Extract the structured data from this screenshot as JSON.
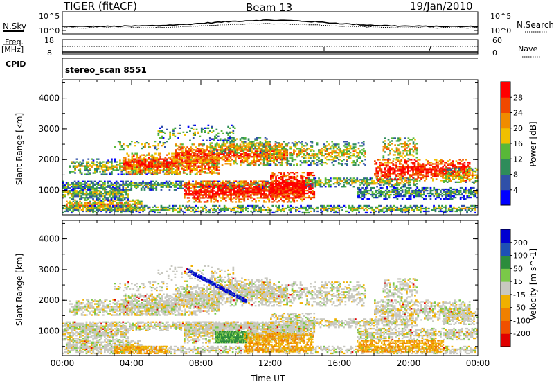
{
  "header": {
    "station": "TIGER (fitACF)",
    "beam": "Beam 13",
    "date": "19/Jan/2010"
  },
  "top_panels": {
    "nsky_label": "N.Sky",
    "nsky_ticks": [
      "10^5",
      "10^0"
    ],
    "nsearch_label": "N.Search",
    "nsearch_ticks": [
      "10^5",
      "10^0"
    ],
    "freq_label": "Freq.",
    "freq_unit": "[MHz]",
    "freq_ticks": [
      "18",
      "8"
    ],
    "nave_label": "Nave",
    "nave_ticks": [
      "60",
      "0"
    ],
    "cpid_label": "CPID",
    "cpid_value": "stereo_scan 8551"
  },
  "colors": {
    "power_scale": [
      "#0000ff",
      "#3050a8",
      "#2e8c5a",
      "#58b838",
      "#f0c000",
      "#f08c00",
      "#f04800",
      "#ff0000"
    ],
    "velocity_scale": [
      "#e00000",
      "#f05000",
      "#f08000",
      "#f0b000",
      "#c8c8c0",
      "#7ac848",
      "#2c8c3c",
      "#1e50b4",
      "#0000d0"
    ]
  },
  "chart_data": [
    {
      "type": "heatmap",
      "ylabel": "Slant Range [km]",
      "yticks": [
        "1000",
        "2000",
        "3000",
        "4000"
      ],
      "ylim": [
        200,
        4600
      ],
      "xlim": [
        0,
        24
      ],
      "xticks": [
        "00:00",
        "04:00",
        "08:00",
        "12:00",
        "16:00",
        "20:00",
        "00:00"
      ],
      "colorbar_label": "Power [dB]",
      "colorbar_ticks": [
        "4",
        "8",
        "12",
        "16",
        "20",
        "24",
        "28"
      ]
    },
    {
      "type": "heatmap",
      "ylabel": "Slant Range [km]",
      "yticks": [
        "1000",
        "2000",
        "3000",
        "4000"
      ],
      "ylim": [
        200,
        4600
      ],
      "xlim": [
        0,
        24
      ],
      "xticks": [
        "00:00",
        "04:00",
        "08:00",
        "12:00",
        "16:00",
        "20:00",
        "00:00"
      ],
      "xlabel": "Time UT",
      "colorbar_label": "Velocity [m s^-1]",
      "colorbar_ticks": [
        "200",
        "100",
        "50",
        "15",
        "-15",
        "-50",
        "-100",
        "-200"
      ]
    }
  ]
}
